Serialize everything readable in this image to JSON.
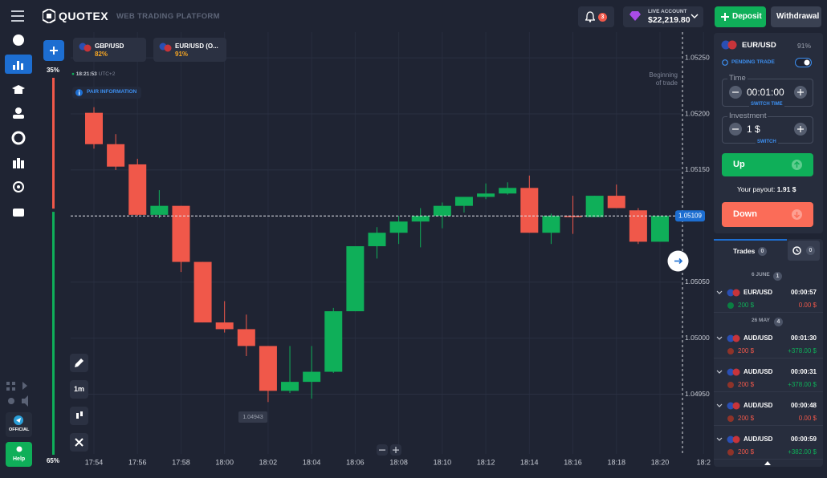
{
  "header": {
    "logo": "QUOTEX",
    "subtitle": "WEB TRADING PLATFORM",
    "notifications": "3",
    "account_type": "LIVE ACCOUNT",
    "balance": "$22,219.80",
    "deposit": "Deposit",
    "withdrawal": "Withdrawal"
  },
  "sidebar": {
    "official": "OFFICIAL",
    "help": "Help"
  },
  "sentiment": {
    "values": [
      35,
      65
    ],
    "value_labels": [
      "35%",
      "65%"
    ],
    "colors": [
      "#f0584a",
      "#0faf59"
    ]
  },
  "asset_tabs": [
    {
      "pair": "GBP/USD",
      "payout": "82%"
    },
    {
      "pair": "EUR/USD (O...",
      "payout": "91%"
    }
  ],
  "clock": {
    "time": "18:21:53",
    "zone": "UTC+2"
  },
  "pair_information": "PAIR INFORMATION",
  "beginning_of_trade": [
    "Beginning",
    "of trade"
  ],
  "timeframe": "1m",
  "chart_data": {
    "type": "candlestick",
    "categories": [
      "17:54",
      null,
      "17:56",
      null,
      "17:58",
      null,
      "18:00",
      null,
      "18:02",
      null,
      "18:04",
      null,
      "18:06",
      null,
      "18:08",
      null,
      "18:10",
      null,
      "18:12",
      null,
      "18:14",
      null,
      "18:16",
      null,
      "18:18",
      null,
      "18:20",
      null,
      "18:2"
    ],
    "open": [
      1.05201,
      1.05173,
      1.05155,
      1.0511,
      1.05118,
      1.05068,
      1.05014,
      1.05008,
      1.04993,
      1.04953,
      1.04961,
      1.0497,
      1.05024,
      1.05082,
      1.05094,
      1.05104,
      1.05109,
      1.05118,
      1.05126,
      1.05129,
      1.05134,
      1.05094,
      1.05109,
      1.05108,
      1.05127,
      1.05114,
      1.05086,
      null,
      null
    ],
    "high": [
      1.05206,
      1.05182,
      1.0516,
      1.05132,
      1.05118,
      1.05068,
      1.05033,
      1.05021,
      1.04993,
      1.04993,
      1.04993,
      1.05027,
      1.05082,
      1.05099,
      1.05109,
      1.05116,
      1.05121,
      1.05126,
      1.05138,
      1.05139,
      1.05145,
      1.05111,
      1.05127,
      1.05127,
      1.05137,
      1.05116,
      1.05109,
      null,
      null
    ],
    "low": [
      1.05169,
      1.0515,
      1.05109,
      1.05107,
      1.05059,
      1.05014,
      1.05005,
      1.04984,
      1.04943,
      1.04951,
      1.04946,
      1.04969,
      1.05024,
      1.05071,
      1.05084,
      1.05081,
      1.05098,
      1.05112,
      1.05124,
      1.05128,
      1.05094,
      1.05084,
      1.05093,
      1.05108,
      1.05116,
      1.05084,
      1.05086,
      null,
      null
    ],
    "close": [
      1.05173,
      1.05153,
      1.0511,
      1.05118,
      1.05068,
      1.05014,
      1.05008,
      1.04993,
      1.04953,
      1.04961,
      1.0497,
      1.05024,
      1.05082,
      1.05094,
      1.05104,
      1.05109,
      1.05118,
      1.05126,
      1.05129,
      1.05134,
      1.05094,
      1.05109,
      1.05108,
      1.05127,
      1.05116,
      1.05086,
      1.05109,
      null,
      null
    ],
    "up_color": "#0faf59",
    "down_color": "#f0584a",
    "ylim": [
      1.04901,
      1.05273
    ],
    "yticks": [
      {
        "value": 1.0495,
        "label": "1.04950"
      },
      {
        "value": 1.05,
        "label": "1.05000"
      },
      {
        "value": 1.0505,
        "label": "1.05050"
      },
      {
        "value": 1.0515,
        "label": "1.05150"
      },
      {
        "value": 1.052,
        "label": "1.05200"
      },
      {
        "value": 1.0525,
        "label": "1.05250"
      }
    ],
    "grid": true,
    "current_price": 1.05109,
    "min_label": 1.04943
  },
  "trade_panel": {
    "pair": "EUR/USD",
    "payout": "91%",
    "pending": "PENDING TRADE",
    "time_label": "Time",
    "time": "00:01:00",
    "switch_time": "SWITCH TIME",
    "investment_label": "Investment",
    "investment": "1 $",
    "switch": "SWITCH",
    "up": "Up",
    "payout_label": "Your payout:",
    "payout_value": "1.91 $",
    "down": "Down"
  },
  "trades": {
    "tab": "Trades",
    "count": "0",
    "history_count": "0",
    "groups": [
      {
        "date": "6 JUNE",
        "count": "1",
        "items": [
          {
            "pair": "EUR/USD",
            "duration": "00:00:57",
            "amount": "200 $",
            "result": "0.00 $",
            "direction": "up"
          }
        ]
      },
      {
        "date": "26 MAY",
        "count": "4",
        "items": [
          {
            "pair": "AUD/USD",
            "duration": "00:01:30",
            "amount": "200 $",
            "result": "+378.00 $",
            "direction": "down"
          },
          {
            "pair": "AUD/USD",
            "duration": "00:00:31",
            "amount": "200 $",
            "result": "+378.00 $",
            "direction": "down"
          },
          {
            "pair": "AUD/USD",
            "duration": "00:00:48",
            "amount": "200 $",
            "result": "0.00 $",
            "direction": "down"
          },
          {
            "pair": "AUD/USD",
            "duration": "00:00:59",
            "amount": "200 $",
            "result": "+382.00 $",
            "direction": "down"
          }
        ]
      }
    ]
  }
}
